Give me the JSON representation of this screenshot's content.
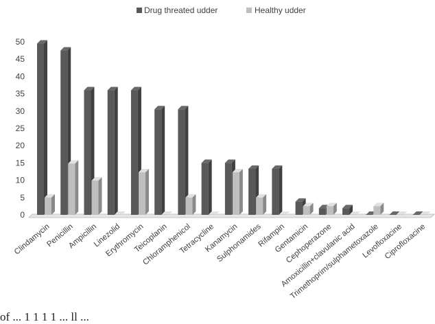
{
  "chart_data": {
    "type": "bar",
    "legend_position": "top-center",
    "grid": false,
    "ylim": [
      0,
      50
    ],
    "yticks": [
      0,
      5,
      10,
      15,
      20,
      25,
      30,
      35,
      40,
      45,
      50
    ],
    "categories": [
      "Clindamycin",
      "Penicillin",
      "Ampicillin",
      "Linezolid",
      "Erythromycin",
      "Teicoplanin",
      "Chloramphenicol",
      "Tetracycline",
      "Kanamycin",
      "Sulphonamides",
      "Rifampin",
      "Gentamicin",
      "Cephoperazone",
      "Amoxicillin+clavulanic acid",
      "Trimethoprim/sulphametoxazole",
      "Levofloxacine",
      "Ciprofloxacine"
    ],
    "series": [
      {
        "name": "Drug threated udder",
        "color": "#595959",
        "values": [
          49.5,
          47.5,
          36,
          36,
          36,
          30.5,
          30.5,
          15,
          15,
          13.3,
          13.3,
          3.8,
          1.9,
          1.9,
          0,
          0,
          0
        ]
      },
      {
        "name": "Healthy udder",
        "color": "#bfbfbf",
        "values": [
          5,
          14.8,
          9.9,
          0,
          12.3,
          0,
          5,
          0,
          12.3,
          5,
          0,
          2.5,
          2.5,
          0,
          2.5,
          0,
          0
        ]
      }
    ]
  },
  "caption_fragment": "of    ... 1 1 1  1  ... ll   ..."
}
